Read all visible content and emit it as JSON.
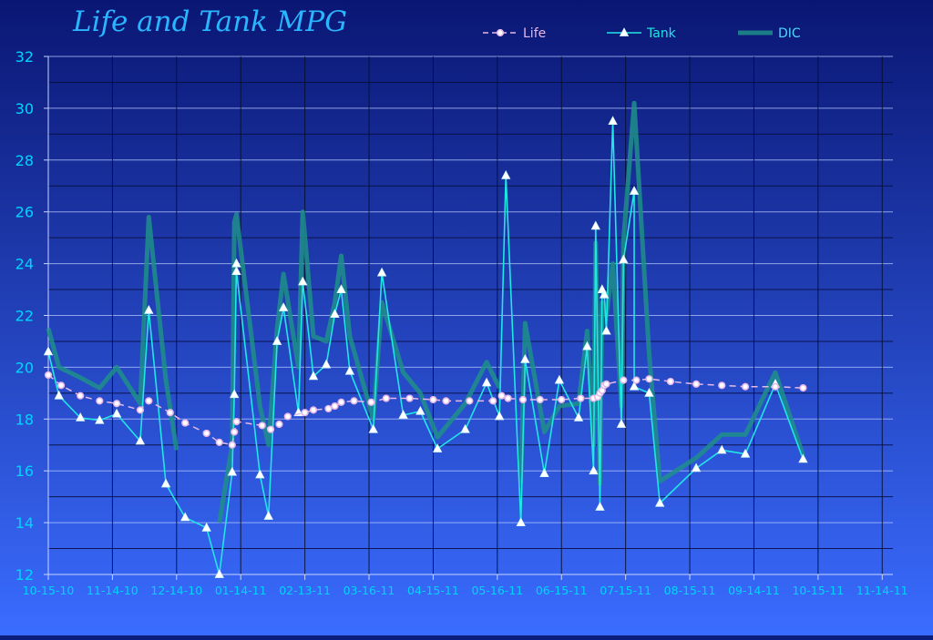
{
  "chart_data": {
    "type": "line",
    "title": "Life and Tank MPG",
    "xlabel": "",
    "ylabel": "",
    "ylim": [
      12,
      32
    ],
    "yticks": [
      12,
      14,
      16,
      18,
      20,
      22,
      24,
      26,
      28,
      30,
      32
    ],
    "xlim": [
      "2010-10-15",
      "2011-11-14"
    ],
    "xticks": [
      "2010-10-15",
      "2010-11-14",
      "2010-12-14",
      "2011-01-13",
      "2011-02-12",
      "2011-03-14",
      "2011-04-13",
      "2011-05-13",
      "2011-06-12",
      "2011-07-12",
      "2011-08-11",
      "2011-09-10",
      "2011-10-10",
      "2011-11-09"
    ],
    "xtick_labels": [
      "10-15-10",
      "11-14-10",
      "12-14-10",
      "01-14-11",
      "02-13-11",
      "03-16-11",
      "04-15-11",
      "05-16-11",
      "06-15-11",
      "07-15-11",
      "08-15-11",
      "09-14-11",
      "10-15-11",
      "11-14-11"
    ],
    "grid": "horizontal",
    "legend": "top",
    "colors": {
      "life": "#e4b8e8",
      "tank": "#20e6e6",
      "dic": "#1f8f8a",
      "text": "#00d5ff",
      "title": "#2ab5ff"
    },
    "series": [
      {
        "name": "Life",
        "color": "#e4b8e8",
        "marker": "circle",
        "style": "dashed",
        "x": [
          "2010-10-15",
          "2010-10-21",
          "2010-10-30",
          "2010-11-08",
          "2010-11-16",
          "2010-11-27",
          "2010-12-01",
          "2010-12-11",
          "2010-12-18",
          "2010-12-28",
          "2011-01-03",
          "2011-01-09",
          "2011-01-10",
          "2011-01-11",
          "2011-01-23",
          "2011-01-27",
          "2011-01-31",
          "2011-02-04",
          "2011-02-12",
          "2011-02-16",
          "2011-02-23",
          "2011-02-26",
          "2011-03-01",
          "2011-03-07",
          "2011-03-15",
          "2011-03-22",
          "2011-04-02",
          "2011-04-13",
          "2011-04-19",
          "2011-04-30",
          "2011-05-11",
          "2011-05-15",
          "2011-05-18",
          "2011-05-25",
          "2011-06-02",
          "2011-06-12",
          "2011-06-21",
          "2011-06-27",
          "2011-06-29",
          "2011-06-30",
          "2011-07-01",
          "2011-07-02",
          "2011-07-03",
          "2011-07-11",
          "2011-07-17",
          "2011-07-23",
          "2011-08-02",
          "2011-08-14",
          "2011-08-26",
          "2011-09-06",
          "2011-09-20",
          "2011-10-03"
        ],
        "values": [
          19.7,
          19.3,
          18.9,
          18.7,
          18.6,
          18.35,
          18.7,
          18.25,
          17.85,
          17.45,
          17.1,
          17.0,
          17.5,
          17.9,
          17.75,
          17.6,
          17.8,
          18.1,
          18.25,
          18.35,
          18.4,
          18.5,
          18.65,
          18.7,
          18.65,
          18.8,
          18.8,
          18.75,
          18.7,
          18.7,
          18.7,
          18.9,
          18.8,
          18.75,
          18.75,
          18.75,
          18.8,
          18.8,
          18.85,
          19.0,
          19.1,
          19.3,
          19.35,
          19.5,
          19.5,
          19.55,
          19.45,
          19.35,
          19.3,
          19.25,
          19.25,
          19.2
        ]
      },
      {
        "name": "Tank",
        "color": "#20e6e6",
        "marker": "triangle",
        "style": "solid",
        "x": [
          "2010-10-15",
          "2010-10-20",
          "2010-10-30",
          "2010-11-08",
          "2010-11-16",
          "2010-11-27",
          "2010-12-01",
          "2010-12-09",
          "2010-12-18",
          "2010-12-28",
          "2011-01-03",
          "2011-01-09",
          "2011-01-10",
          "2011-01-11",
          "2011-01-11",
          "2011-01-22",
          "2011-01-26",
          "2011-01-30",
          "2011-02-02",
          "2011-02-09",
          "2011-02-11",
          "2011-02-16",
          "2011-02-22",
          "2011-02-26",
          "2011-03-01",
          "2011-03-05",
          "2011-03-16",
          "2011-03-20",
          "2011-03-30",
          "2011-04-07",
          "2011-04-15",
          "2011-04-28",
          "2011-05-08",
          "2011-05-14",
          "2011-05-17",
          "2011-05-24",
          "2011-05-26",
          "2011-06-04",
          "2011-06-11",
          "2011-06-20",
          "2011-06-24",
          "2011-06-27",
          "2011-06-28",
          "2011-06-30",
          "2011-07-01",
          "2011-07-02",
          "2011-07-03",
          "2011-07-06",
          "2011-07-10",
          "2011-07-11",
          "2011-07-16",
          "2011-07-16",
          "2011-07-23",
          "2011-07-28",
          "2011-08-14",
          "2011-08-26",
          "2011-09-06",
          "2011-09-20",
          "2011-10-03"
        ],
        "values": [
          20.6,
          18.9,
          18.05,
          17.95,
          18.2,
          17.15,
          22.2,
          15.5,
          14.2,
          13.8,
          12.0,
          15.95,
          18.95,
          24.0,
          23.7,
          15.85,
          14.25,
          21.0,
          22.3,
          18.25,
          23.3,
          19.65,
          20.1,
          22.05,
          23.0,
          19.85,
          17.6,
          23.65,
          18.15,
          18.3,
          16.85,
          17.6,
          19.4,
          18.1,
          27.4,
          14.0,
          20.3,
          15.9,
          19.5,
          18.05,
          20.8,
          16.0,
          25.45,
          14.6,
          23.0,
          22.8,
          21.4,
          29.5,
          17.8,
          24.15,
          26.8,
          19.25,
          19.0,
          14.75,
          16.1,
          16.8,
          16.65,
          19.35,
          16.45
        ]
      },
      {
        "name": "DIC",
        "color": "#1f8f8a",
        "marker": "none",
        "style": "solid",
        "width": 5,
        "x": [
          "2010-10-15",
          "2010-10-20",
          "2010-10-30",
          "2010-11-08",
          "2010-11-16",
          "2010-11-27",
          "2010-12-01",
          "2010-12-09",
          "2010-12-14",
          "2010-12-18",
          "2011-01-03",
          "2011-01-09",
          "2011-01-10",
          "2011-01-11",
          "2011-01-22",
          "2011-01-26",
          "2011-01-30",
          "2011-02-02",
          "2011-02-09",
          "2011-02-11",
          "2011-02-16",
          "2011-02-22",
          "2011-02-26",
          "2011-03-01",
          "2011-03-05",
          "2011-03-16",
          "2011-03-20",
          "2011-03-30",
          "2011-04-07",
          "2011-04-15",
          "2011-04-28",
          "2011-05-08",
          "2011-05-14",
          "2011-05-17",
          "2011-05-24",
          "2011-05-26",
          "2011-06-04",
          "2011-06-11",
          "2011-06-20",
          "2011-06-24",
          "2011-06-27",
          "2011-06-28",
          "2011-06-30",
          "2011-07-01",
          "2011-07-03",
          "2011-07-06",
          "2011-07-10",
          "2011-07-11",
          "2011-07-16",
          "2011-07-23",
          "2011-07-28",
          "2011-08-14",
          "2011-08-26",
          "2011-09-06",
          "2011-09-20",
          "2011-10-03"
        ],
        "values": [
          21.5,
          20.0,
          19.6,
          19.2,
          20.0,
          18.6,
          25.8,
          19.5,
          16.8,
          null,
          14.0,
          17.0,
          25.6,
          25.9,
          18.5,
          17.0,
          21.5,
          23.6,
          20.0,
          26.0,
          21.2,
          21.0,
          22.5,
          24.3,
          21.2,
          18.0,
          22.5,
          19.8,
          19.0,
          17.3,
          18.6,
          20.2,
          19.2,
          null,
          15.5,
          21.7,
          17.5,
          18.5,
          18.6,
          21.4,
          17.0,
          24.8,
          15.5,
          22.5,
          22.0,
          24.0,
          18.5,
          24.9,
          30.2,
          20.5,
          15.6,
          16.5,
          17.4,
          17.4,
          19.8,
          16.6
        ]
      }
    ]
  }
}
